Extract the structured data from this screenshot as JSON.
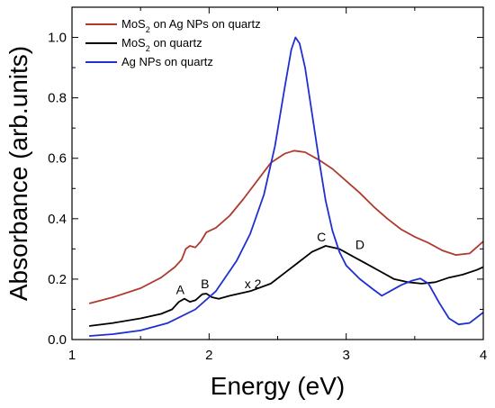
{
  "chart_data": {
    "type": "line",
    "xlabel": "Energy (eV)",
    "ylabel": "Absorbance (arb.units)",
    "xlim": [
      1,
      4
    ],
    "ylim": [
      0,
      1.1
    ],
    "x_ticks": [
      1,
      2,
      3,
      4
    ],
    "y_ticks": [
      0.0,
      0.2,
      0.4,
      0.6,
      0.8,
      1.0
    ],
    "x_tick_labels": [
      "1",
      "2",
      "3",
      "4"
    ],
    "y_tick_labels": [
      "0.0",
      "0.2",
      "0.4",
      "0.6",
      "0.8",
      "1.0"
    ],
    "grid": false,
    "legend_position": "top-left",
    "series": [
      {
        "name_parts": [
          "MoS",
          "2",
          " on Ag NPs on quartz"
        ],
        "color": "#b03a2e",
        "points": [
          [
            1.13,
            0.12
          ],
          [
            1.3,
            0.14
          ],
          [
            1.5,
            0.17
          ],
          [
            1.65,
            0.205
          ],
          [
            1.75,
            0.24
          ],
          [
            1.8,
            0.265
          ],
          [
            1.83,
            0.3
          ],
          [
            1.86,
            0.31
          ],
          [
            1.9,
            0.305
          ],
          [
            1.94,
            0.325
          ],
          [
            1.98,
            0.355
          ],
          [
            2.05,
            0.37
          ],
          [
            2.15,
            0.41
          ],
          [
            2.25,
            0.465
          ],
          [
            2.35,
            0.525
          ],
          [
            2.45,
            0.585
          ],
          [
            2.55,
            0.615
          ],
          [
            2.62,
            0.625
          ],
          [
            2.7,
            0.62
          ],
          [
            2.8,
            0.595
          ],
          [
            2.9,
            0.565
          ],
          [
            3.0,
            0.525
          ],
          [
            3.1,
            0.485
          ],
          [
            3.2,
            0.44
          ],
          [
            3.3,
            0.4
          ],
          [
            3.4,
            0.365
          ],
          [
            3.5,
            0.34
          ],
          [
            3.6,
            0.32
          ],
          [
            3.7,
            0.295
          ],
          [
            3.8,
            0.28
          ],
          [
            3.9,
            0.285
          ],
          [
            4.0,
            0.325
          ]
        ]
      },
      {
        "name_parts": [
          "MoS",
          "2",
          " on quartz"
        ],
        "color": "#000000",
        "points": [
          [
            1.13,
            0.045
          ],
          [
            1.3,
            0.055
          ],
          [
            1.5,
            0.07
          ],
          [
            1.65,
            0.085
          ],
          [
            1.73,
            0.1
          ],
          [
            1.78,
            0.125
          ],
          [
            1.82,
            0.135
          ],
          [
            1.86,
            0.125
          ],
          [
            1.9,
            0.13
          ],
          [
            1.95,
            0.15
          ],
          [
            1.98,
            0.152
          ],
          [
            2.02,
            0.14
          ],
          [
            2.07,
            0.135
          ],
          [
            2.15,
            0.145
          ],
          [
            2.3,
            0.16
          ],
          [
            2.45,
            0.185
          ],
          [
            2.55,
            0.22
          ],
          [
            2.65,
            0.255
          ],
          [
            2.75,
            0.29
          ],
          [
            2.85,
            0.31
          ],
          [
            2.95,
            0.3
          ],
          [
            3.05,
            0.275
          ],
          [
            3.15,
            0.25
          ],
          [
            3.25,
            0.225
          ],
          [
            3.35,
            0.2
          ],
          [
            3.45,
            0.19
          ],
          [
            3.55,
            0.185
          ],
          [
            3.65,
            0.19
          ],
          [
            3.75,
            0.205
          ],
          [
            3.85,
            0.215
          ],
          [
            3.95,
            0.23
          ],
          [
            4.0,
            0.24
          ]
        ]
      },
      {
        "name_parts": [
          "Ag NPs on quartz"
        ],
        "color": "#1f2fd1",
        "points": [
          [
            1.13,
            0.012
          ],
          [
            1.3,
            0.018
          ],
          [
            1.5,
            0.03
          ],
          [
            1.7,
            0.055
          ],
          [
            1.9,
            0.1
          ],
          [
            2.05,
            0.16
          ],
          [
            2.2,
            0.26
          ],
          [
            2.3,
            0.35
          ],
          [
            2.4,
            0.48
          ],
          [
            2.48,
            0.64
          ],
          [
            2.55,
            0.83
          ],
          [
            2.6,
            0.96
          ],
          [
            2.63,
            1.0
          ],
          [
            2.66,
            0.98
          ],
          [
            2.7,
            0.9
          ],
          [
            2.75,
            0.75
          ],
          [
            2.8,
            0.6
          ],
          [
            2.85,
            0.46
          ],
          [
            2.9,
            0.36
          ],
          [
            2.95,
            0.29
          ],
          [
            3.0,
            0.245
          ],
          [
            3.1,
            0.2
          ],
          [
            3.2,
            0.165
          ],
          [
            3.26,
            0.145
          ],
          [
            3.32,
            0.16
          ],
          [
            3.4,
            0.18
          ],
          [
            3.48,
            0.195
          ],
          [
            3.54,
            0.202
          ],
          [
            3.6,
            0.185
          ],
          [
            3.68,
            0.12
          ],
          [
            3.75,
            0.07
          ],
          [
            3.82,
            0.05
          ],
          [
            3.9,
            0.055
          ],
          [
            4.0,
            0.09
          ]
        ]
      }
    ],
    "annotations": [
      {
        "text": "A",
        "x": 1.79,
        "y": 0.15
      },
      {
        "text": "B",
        "x": 1.97,
        "y": 0.17
      },
      {
        "text": "x 2",
        "x": 2.32,
        "y": 0.17
      },
      {
        "text": "C",
        "x": 2.82,
        "y": 0.325
      },
      {
        "text": "D",
        "x": 3.1,
        "y": 0.3
      }
    ]
  }
}
